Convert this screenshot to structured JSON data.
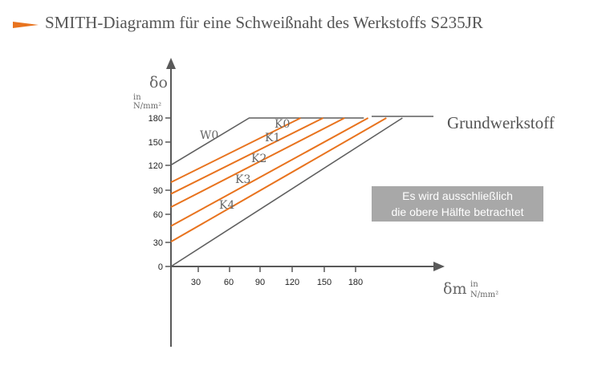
{
  "title": "SMITH-Diagramm für eine Schweißnaht des Werkstoffs S235JR",
  "colors": {
    "accent": "#e8731e",
    "axis": "#595959",
    "envelope": "#5f5f5f",
    "text": "#555555",
    "note_bg": "#a8a8a8"
  },
  "y_axis": {
    "symbol": "δo",
    "unit_line1": "in",
    "unit_line2": "N/mm²",
    "ticks": [
      "180",
      "150",
      "120",
      "90",
      "60",
      "30",
      "0"
    ]
  },
  "x_axis": {
    "symbol": "δm",
    "unit_line1": "in",
    "unit_line2": "N/mm²",
    "ticks": [
      "30",
      "60",
      "90",
      "120",
      "150",
      "180"
    ]
  },
  "curve_labels": {
    "w0": "W0",
    "k0": "K0",
    "k1": "K1",
    "k2": "K2",
    "k3": "K3",
    "k4": "K4"
  },
  "base_material_label": "Grundwerkstoff",
  "note": {
    "line1": "Es wird ausschließlich",
    "line2": "die obere Hälfte betrachtet"
  },
  "chart_data": {
    "type": "line",
    "xlim": [
      0,
      210
    ],
    "ylim": [
      0,
      180
    ],
    "series": [
      {
        "name": "W0",
        "points": [
          [
            0,
            123
          ],
          [
            73,
            180
          ],
          [
            180,
            180
          ]
        ]
      },
      {
        "name": "K0",
        "points": [
          [
            0,
            102
          ],
          [
            121,
            180
          ]
        ]
      },
      {
        "name": "K1",
        "points": [
          [
            0,
            88
          ],
          [
            142,
            180
          ]
        ]
      },
      {
        "name": "K2",
        "points": [
          [
            0,
            72
          ],
          [
            162,
            180
          ]
        ]
      },
      {
        "name": "K3",
        "points": [
          [
            0,
            49
          ],
          [
            184,
            180
          ]
        ]
      },
      {
        "name": "K4",
        "points": [
          [
            0,
            30
          ],
          [
            201,
            180
          ]
        ]
      },
      {
        "name": "",
        "points": [
          [
            0,
            0
          ],
          [
            216,
            180
          ]
        ]
      }
    ]
  }
}
